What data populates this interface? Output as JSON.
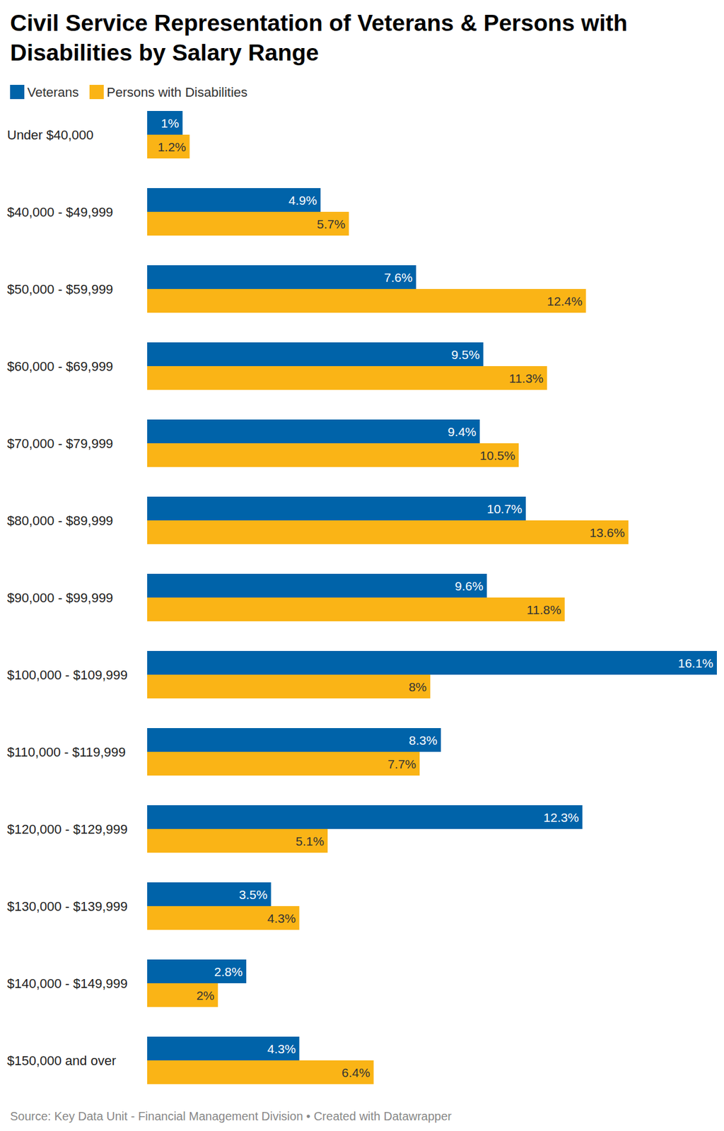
{
  "chart_data": {
    "type": "bar",
    "title": "Civil Service Representation of Veterans & Persons with Disabilities by Salary Range",
    "source": "Source: Key Data Unit - Financial Management Division • Created with Datawrapper",
    "orientation": "horizontal",
    "categories": [
      "Under $40,000",
      "$40,000 - $49,999",
      "$50,000 - $59,999",
      "$60,000 - $69,999",
      "$70,000 - $79,999",
      "$80,000 - $89,999",
      "$90,000 - $99,999",
      "$100,000 - $109,999",
      "$110,000 - $119,999",
      "$120,000 - $129,999",
      "$130,000 - $139,999",
      "$140,000 - $149,999",
      "$150,000 and over"
    ],
    "series": [
      {
        "name": "Veterans",
        "color": "#0063a9",
        "values": [
          1,
          4.9,
          7.6,
          9.5,
          9.4,
          10.7,
          9.6,
          16.1,
          8.3,
          12.3,
          3.5,
          2.8,
          4.3
        ],
        "value_labels": [
          "1%",
          "4.9%",
          "7.6%",
          "9.5%",
          "9.4%",
          "10.7%",
          "9.6%",
          "16.1%",
          "8.3%",
          "12.3%",
          "3.5%",
          "2.8%",
          "4.3%"
        ]
      },
      {
        "name": "Persons with Disabilities",
        "color": "#fab416",
        "values": [
          1.2,
          5.7,
          12.4,
          11.3,
          10.5,
          13.6,
          11.8,
          8,
          7.7,
          5.1,
          4.3,
          2,
          6.4
        ],
        "value_labels": [
          "1.2%",
          "5.7%",
          "12.4%",
          "11.3%",
          "10.5%",
          "13.6%",
          "11.8%",
          "8%",
          "7.7%",
          "5.1%",
          "4.3%",
          "2%",
          "6.4%"
        ]
      }
    ],
    "xlim": [
      0,
      16.1
    ],
    "grid": false,
    "legend": "top-left",
    "data_labels": true,
    "tick_labels": "y"
  }
}
